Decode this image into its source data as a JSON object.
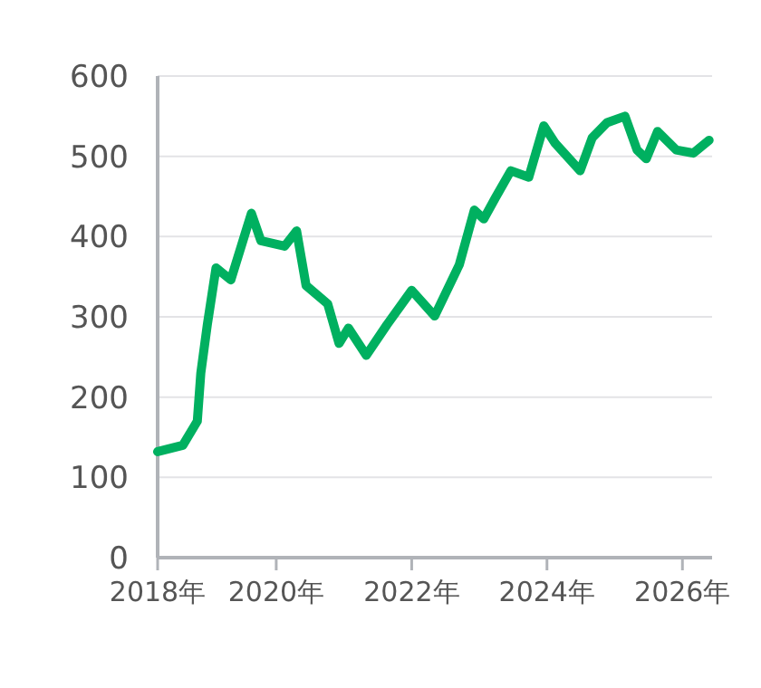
{
  "chart_data": {
    "type": "line",
    "x": [
      "2018-04-01",
      "2018-08-15",
      "2018-11-01",
      "2018-11-20",
      "2018-12-25",
      "2019-02-10",
      "2019-05-01",
      "2019-08-20",
      "2019-10-10",
      "2020-02-15",
      "2020-04-20",
      "2020-06-10",
      "2020-10-05",
      "2020-12-05",
      "2021-01-25",
      "2021-05-01",
      "2021-08-20",
      "2022-01-01",
      "2022-05-05",
      "2022-09-15",
      "2022-12-05",
      "2023-01-25",
      "2023-03-28",
      "2023-06-20",
      "2023-09-25",
      "2023-12-15",
      "2024-02-15",
      "2024-06-28",
      "2024-09-01",
      "2024-11-20",
      "2025-02-25",
      "2025-05-01",
      "2025-06-20",
      "2025-08-20",
      "2025-11-28",
      "2026-03-01",
      "2026-05-25"
    ],
    "series": [
      {
        "color": "#00b060",
        "values": [
          132,
          140,
          170,
          230,
          290,
          361,
          346,
          429,
          395,
          388,
          407,
          339,
          316,
          267,
          286,
          252,
          290,
          333,
          301,
          365,
          433,
          422,
          448,
          482,
          474,
          538,
          516,
          482,
          523,
          542,
          550,
          508,
          497,
          531,
          508,
          504,
          520
        ]
      }
    ],
    "xlim": [
      "2018-04-01",
      "2026-06-10"
    ],
    "xticks": [
      {
        "value": "2018-04-01",
        "label": "2018年"
      },
      {
        "value": "2020-01-01",
        "label": "2020年"
      },
      {
        "value": "2022-01-01",
        "label": "2022年"
      },
      {
        "value": "2024-01-01",
        "label": "2024年"
      },
      {
        "value": "2026-01-01",
        "label": "2026年"
      }
    ],
    "ylim": [
      0,
      600
    ],
    "yticks": [
      0,
      100,
      200,
      300,
      400,
      500,
      600
    ],
    "grid": "y",
    "marker": "none",
    "line_style": "solid"
  }
}
